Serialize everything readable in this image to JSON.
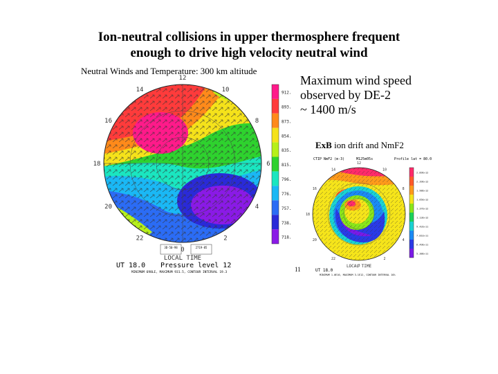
{
  "slide": {
    "title_line1": "Ion-neutral collisions in upper thermosphere frequent",
    "title_line2": "enough to drive high velocity neutral wind",
    "note_line1": "Maximum wind speed",
    "note_line2": "observed by DE-2",
    "note_line3": "~ 1400 m/s",
    "page_number": "11"
  },
  "left_plot": {
    "label": "Neutral Winds and Temperature: 300 km altitude",
    "hour_labels": [
      "12",
      "14",
      "16",
      "18",
      "20",
      "22",
      "0",
      "2",
      "4",
      "6",
      "8",
      "10"
    ],
    "colorbar_values": [
      "912.",
      "893.",
      "873.",
      "854.",
      "835.",
      "815.",
      "796.",
      "776.",
      "757.",
      "738.",
      "718."
    ],
    "colorbar_colors": [
      "#ff1a8a",
      "#ff3b3b",
      "#ff8a1a",
      "#f5e21a",
      "#b6f01a",
      "#2ed22e",
      "#1ae6c0",
      "#1ab8f5",
      "#2b6cf5",
      "#2a2ad8",
      "#8a1ae6"
    ],
    "local_time_label": "LOCAL TIME",
    "ut_label": "UT  18.0",
    "pressure_label": "Pressure level 12",
    "footer": "MINIMUM 698LE, MAXIMUM 931.5, CONTOUR INTERVAL 19.3",
    "legend_left": "3D-50-98",
    "legend_right": "2719-85"
  },
  "right_plot": {
    "heading_bold": "ExB",
    "heading_rest": " ion drift and NmF2",
    "header_left": "CTIP  NmF2   (m-3)",
    "header_mid": "M125m05s",
    "header_right": "Profile lat = 80.0",
    "hour_labels": [
      "12",
      "14",
      "16",
      "18",
      "20",
      "22",
      "0",
      "2",
      "4",
      "6",
      "8",
      "10"
    ],
    "colorbar_values": [
      "2.89E+12",
      "2.39E+12",
      "1.98E+12",
      "1.65E+12",
      "1.37E+12",
      "1.13E+12",
      "9.42E+11",
      "7.81E+11",
      "6.49E+11",
      "5.38E+11"
    ],
    "colorbar_colors": [
      "#ff2a6a",
      "#ff5a2a",
      "#ff9a1a",
      "#f5e41a",
      "#8ae61a",
      "#1ad25a",
      "#1ad2d2",
      "#1a8af5",
      "#2a3ae6",
      "#7a1ae6"
    ],
    "local_time_label": "LOCAL TIME",
    "ut_label": "UT  18.0",
    "footer": "MINIMUM 1.0E10, MAXIMUM 3.1E12, CONTOUR INTERVAL 10%"
  }
}
